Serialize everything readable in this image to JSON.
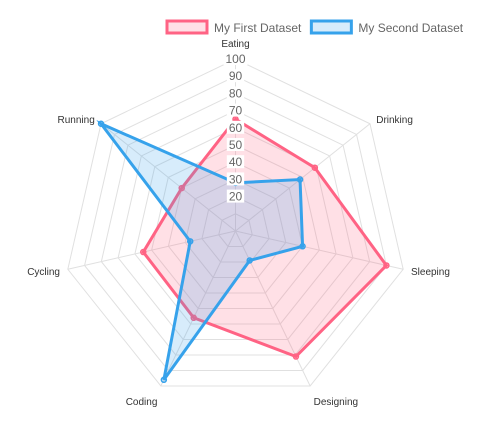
{
  "chart_data": {
    "type": "radar",
    "labels": [
      "Eating",
      "Drinking",
      "Sleeping",
      "Designing",
      "Coding",
      "Cycling",
      "Running"
    ],
    "series": [
      {
        "name": "My First Dataset",
        "values": [
          65,
          59,
          90,
          81,
          56,
          55,
          40
        ],
        "border_color": "#ff6384",
        "fill_color": "rgba(255,99,132,0.2)"
      },
      {
        "name": "My Second Dataset",
        "values": [
          28,
          48,
          40,
          19,
          96,
          27,
          100
        ],
        "border_color": "#36a2eb",
        "fill_color": "rgba(54,162,235,0.2)"
      }
    ],
    "r_range": [
      0,
      100
    ],
    "ticks": [
      "20",
      "30",
      "40",
      "50",
      "60",
      "70",
      "80",
      "90",
      "100"
    ],
    "grid_step": 10,
    "grid": true,
    "legend_position": "top"
  }
}
